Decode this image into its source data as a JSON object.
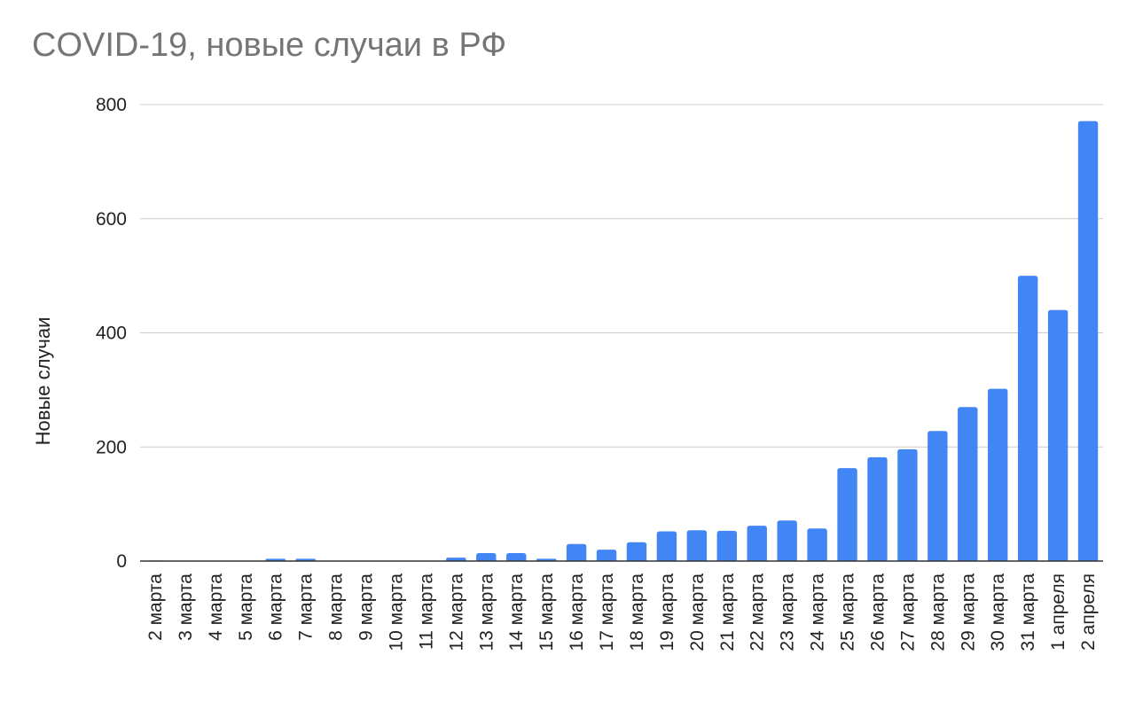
{
  "chart_data": {
    "type": "bar",
    "title": "COVID-19, новые случаи в РФ",
    "xlabel": "",
    "ylabel": "Новые случаи",
    "ylim": [
      0,
      800
    ],
    "yticks": [
      "0",
      "200",
      "400",
      "600",
      "800"
    ],
    "grid": true,
    "bar_color": "#4285f4",
    "categories": [
      "2 марта",
      "3 марта",
      "4 марта",
      "5 марта",
      "6 марта",
      "7 марта",
      "8 марта",
      "9 марта",
      "10 марта",
      "11 марта",
      "12 марта",
      "13 марта",
      "14 марта",
      "15 марта",
      "16 марта",
      "17 марта",
      "18 марта",
      "19 марта",
      "20 марта",
      "21 марта",
      "22 марта",
      "23 марта",
      "24 марта",
      "25 марта",
      "26 марта",
      "27 марта",
      "28 марта",
      "29 марта",
      "30 марта",
      "31 марта",
      "1 апреля",
      "2 апреля"
    ],
    "values": [
      1,
      0,
      0,
      0,
      4,
      4,
      0,
      0,
      0,
      0,
      6,
      14,
      14,
      4,
      30,
      20,
      33,
      52,
      54,
      53,
      62,
      71,
      57,
      163,
      182,
      196,
      228,
      270,
      302,
      500,
      440,
      771
    ]
  }
}
